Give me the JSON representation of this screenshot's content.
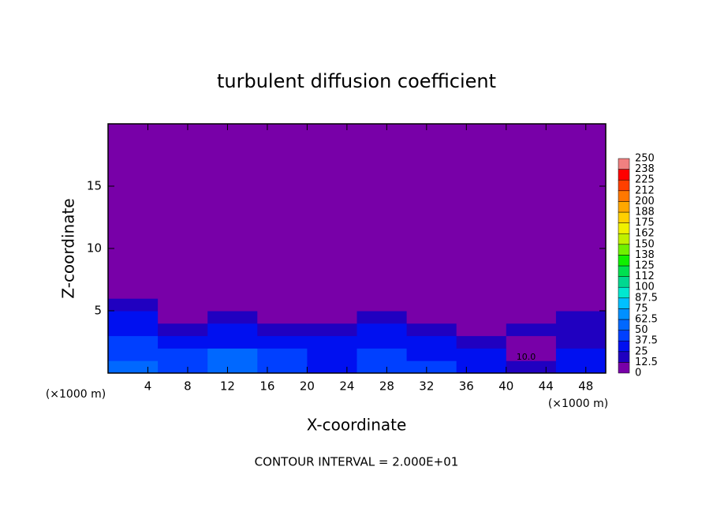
{
  "chart_data": {
    "type": "contour",
    "title": "turbulent diffusion coefficient",
    "x_label": "X-coordinate",
    "y_label": "Z-coordinate",
    "x_unit": "(×1000 m)",
    "footer": "CONTOUR INTERVAL = 2.000E+01",
    "xlim": [
      0,
      50
    ],
    "ylim": [
      0,
      20
    ],
    "xticks": [
      4,
      8,
      12,
      16,
      20,
      24,
      28,
      32,
      36,
      40,
      44,
      48
    ],
    "yticks": [
      5,
      10,
      15
    ],
    "x_bins": [
      0,
      5,
      10,
      15,
      20,
      25,
      30,
      35,
      40,
      45,
      50
    ],
    "z_bins": [
      0,
      1,
      2,
      3,
      4,
      5,
      6,
      20
    ],
    "values": [
      [
        50,
        45,
        55,
        40,
        35,
        45,
        40,
        30,
        15,
        30
      ],
      [
        45,
        40,
        50,
        40,
        30,
        40,
        35,
        30,
        10,
        25
      ],
      [
        40,
        35,
        30,
        35,
        25,
        35,
        25,
        20,
        10,
        20
      ],
      [
        35,
        20,
        25,
        20,
        15,
        30,
        15,
        10,
        15,
        20
      ],
      [
        30,
        5,
        20,
        5,
        5,
        20,
        10,
        5,
        10,
        15
      ],
      [
        15,
        0,
        5,
        0,
        0,
        5,
        0,
        0,
        5,
        5
      ],
      [
        0,
        0,
        0,
        0,
        0,
        0,
        0,
        0,
        0,
        0
      ]
    ],
    "contour_labels": [
      {
        "x": 42,
        "z": 1,
        "text": "10.0"
      }
    ],
    "levels": [
      0,
      12.5,
      25,
      37.5,
      50,
      62.5,
      75,
      87.5,
      100,
      112,
      125,
      138,
      150,
      162,
      175,
      188,
      200,
      212,
      225,
      238,
      250
    ],
    "colors": [
      "#7800a8",
      "#2000c0",
      "#0010f0",
      "#0040ff",
      "#0068ff",
      "#0090ff",
      "#00c0ff",
      "#00e8d0",
      "#00d890",
      "#00e050",
      "#10f000",
      "#70f000",
      "#c0f000",
      "#f0f000",
      "#ffd000",
      "#ffa800",
      "#ff7800",
      "#ff4000",
      "#ff0000",
      "#f08080"
    ]
  }
}
